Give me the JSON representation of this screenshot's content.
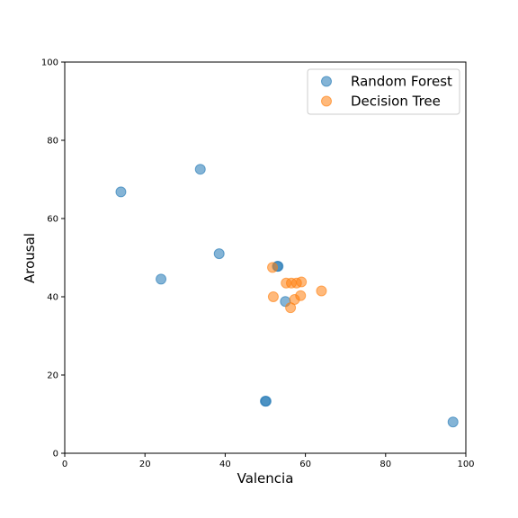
{
  "chart_data": {
    "type": "scatter",
    "title": "",
    "xlabel": "Valencia",
    "ylabel": "Arousal",
    "xlim": [
      0,
      100
    ],
    "ylim": [
      0,
      100
    ],
    "xticks": [
      "0",
      "20",
      "40",
      "60",
      "80",
      "100"
    ],
    "yticks": [
      "0",
      "20",
      "40",
      "60",
      "80",
      "100"
    ],
    "grid": false,
    "legend_position": "upper-right",
    "series": [
      {
        "name": "Random Forest",
        "color": "#1f77b4",
        "points": [
          {
            "x": 14,
            "y": 66.8
          },
          {
            "x": 33.8,
            "y": 72.6
          },
          {
            "x": 24,
            "y": 44.5
          },
          {
            "x": 38.5,
            "y": 51
          },
          {
            "x": 53,
            "y": 47.8
          },
          {
            "x": 53.2,
            "y": 47.8
          },
          {
            "x": 55,
            "y": 38.8
          },
          {
            "x": 50,
            "y": 13.3
          },
          {
            "x": 50.2,
            "y": 13.3
          },
          {
            "x": 96.8,
            "y": 8
          }
        ]
      },
      {
        "name": "Decision Tree",
        "color": "#ff7f0e",
        "points": [
          {
            "x": 51.8,
            "y": 47.5
          },
          {
            "x": 52,
            "y": 40
          },
          {
            "x": 55.2,
            "y": 43.5
          },
          {
            "x": 56.5,
            "y": 43.5
          },
          {
            "x": 57.8,
            "y": 43.5
          },
          {
            "x": 59,
            "y": 43.8
          },
          {
            "x": 57.3,
            "y": 39.3
          },
          {
            "x": 58.8,
            "y": 40.3
          },
          {
            "x": 56.3,
            "y": 37.2
          },
          {
            "x": 64,
            "y": 41.5
          }
        ]
      }
    ]
  }
}
